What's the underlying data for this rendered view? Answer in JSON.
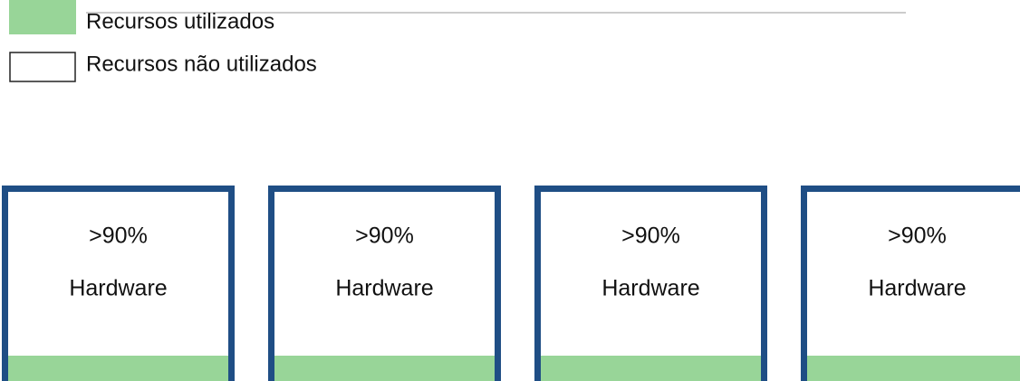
{
  "legend": [
    {
      "label": "Recursos utilizados"
    },
    {
      "label": "Recursos não utilizados"
    }
  ],
  "boxes": [
    {
      "value": ">90%",
      "label": "Hardware"
    },
    {
      "value": ">90%",
      "label": "Hardware"
    },
    {
      "value": ">90%",
      "label": "Hardware"
    },
    {
      "value": ">90%",
      "label": "Hardware"
    }
  ]
}
